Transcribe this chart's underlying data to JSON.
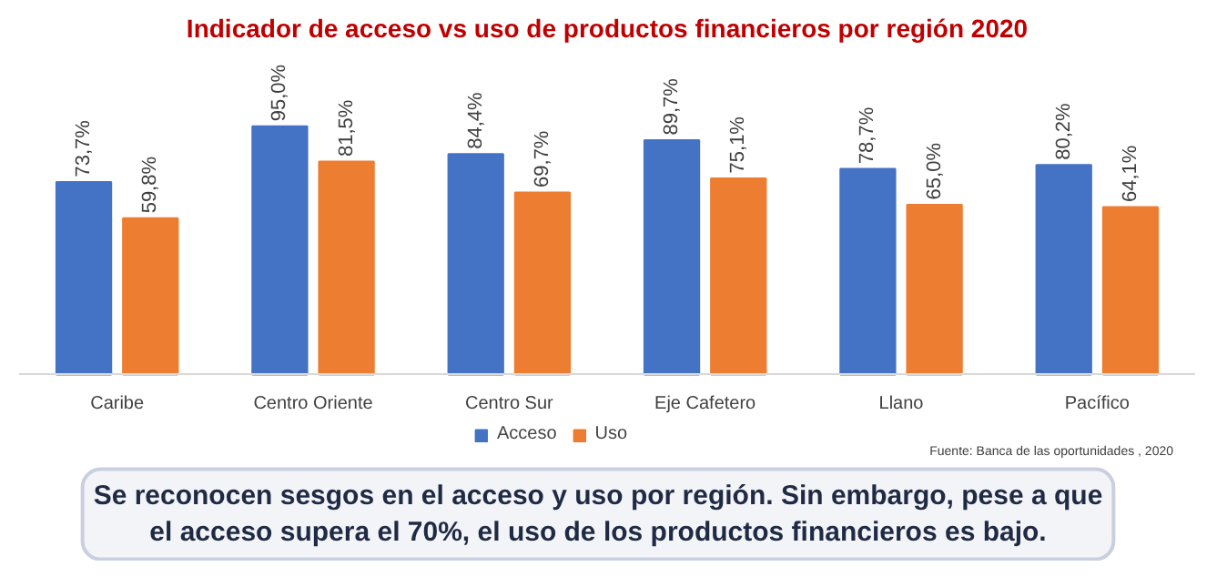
{
  "chart_data": {
    "type": "bar",
    "title": "Indicador de acceso vs uso de productos financieros por región 2020",
    "categories": [
      "Caribe",
      "Centro Oriente",
      "Centro Sur",
      "Eje Cafetero",
      "Llano",
      "Pacífico"
    ],
    "series": [
      {
        "name": "Acceso",
        "color": "#4472c4",
        "values": [
          73.7,
          95.0,
          84.4,
          89.7,
          78.7,
          80.2
        ],
        "value_labels": [
          "73,7%",
          "95,0%",
          "84,4%",
          "89,7%",
          "78,7%",
          "80,2%"
        ]
      },
      {
        "name": "Uso",
        "color": "#ed7d31",
        "values": [
          59.8,
          81.5,
          69.7,
          75.1,
          65.0,
          64.1
        ],
        "value_labels": [
          "59,8%",
          "81,5%",
          "69,7%",
          "75,1%",
          "65,0%",
          "64,1%"
        ]
      }
    ],
    "legend": "bottom",
    "grid": false,
    "annotations": [
      "Fuente: Banca de las oportunidades , 2020",
      "Se reconocen sesgos en el acceso y uso por región. Sin embargo, pese a que el acceso supera el 70%, el uso de los productos financieros es bajo."
    ]
  }
}
